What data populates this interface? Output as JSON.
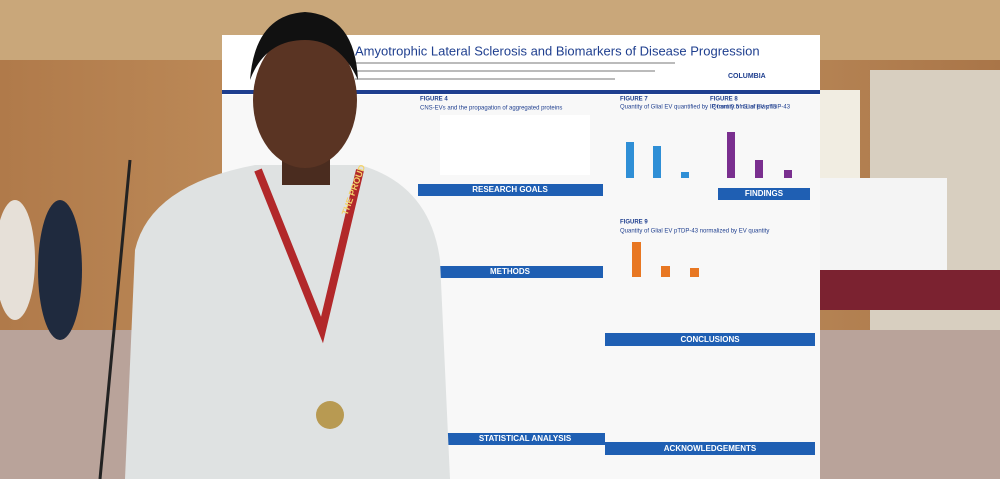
{
  "poster": {
    "title": "Amyotrophic Lateral Sclerosis and Biomarkers of Disease Progression",
    "logo": "COLUMBIA",
    "figure_4": {
      "label": "FIGURE 4",
      "caption": "CNS-EVs and the propagation of aggregated proteins"
    },
    "figure_7": {
      "label": "FIGURE 7",
      "caption": "Quantity of Glial EV quantified by IP from 0.5 mL of plasma"
    },
    "figure_8": {
      "label": "FIGURE 8",
      "caption": "Quantity of Glial EV pTDP-43"
    },
    "figure_9": {
      "label": "FIGURE 9",
      "caption": "Quantity of Glial EV pTDP-43 normalized by EV quantity"
    },
    "sections": [
      "RESEARCH GOALS",
      "METHODS",
      "STATISTICAL ANALYSIS",
      "FINDINGS",
      "CONCLUSIONS",
      "ACKNOWLEDGEMENTS"
    ]
  },
  "lanyard": {
    "text": "THE PROUD"
  }
}
